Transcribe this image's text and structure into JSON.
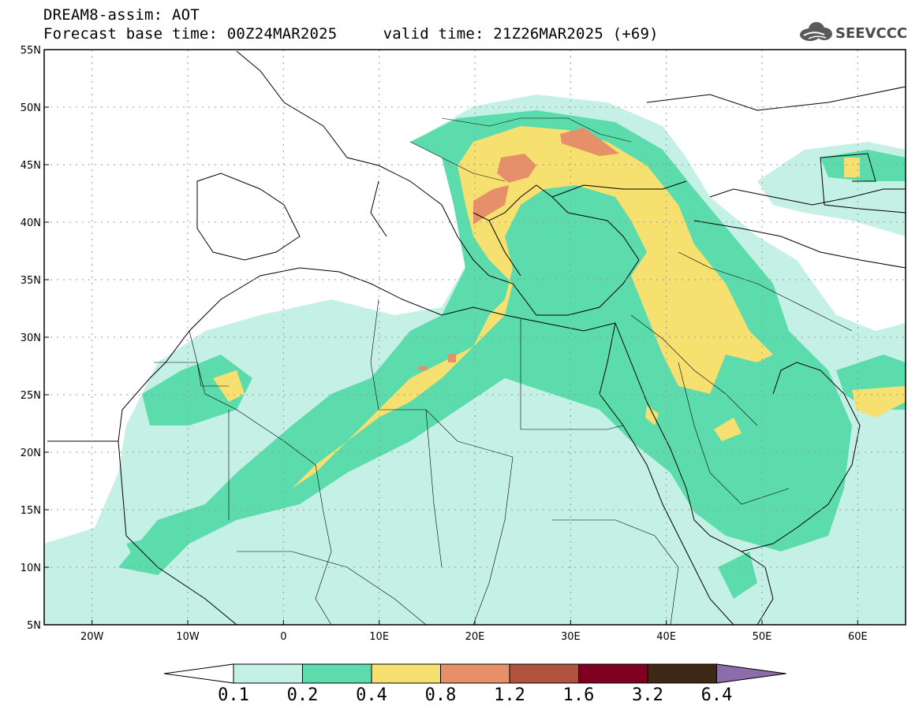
{
  "header": {
    "title": "DREAM8-assim: AOT",
    "subtitle": "Forecast base time: 00Z24MAR2025     valid time: 21Z26MAR2025 (+69)"
  },
  "logo": {
    "text": "SEEVCCC",
    "icon": "cloud-logo-icon"
  },
  "map": {
    "lon_range": [
      -25,
      65
    ],
    "lat_range": [
      5,
      55
    ],
    "x_ticks": [
      "20W",
      "10W",
      "0",
      "10E",
      "20E",
      "30E",
      "40E",
      "50E",
      "60E"
    ],
    "y_ticks": [
      "55N",
      "50N",
      "45N",
      "40N",
      "35N",
      "30N",
      "25N",
      "20N",
      "15N",
      "10N",
      "5N"
    ],
    "grid": true,
    "field": "AOT"
  },
  "colorbar": {
    "labels": [
      "0.1",
      "0.2",
      "0.4",
      "0.8",
      "1.2",
      "1.6",
      "3.2",
      "6.4"
    ],
    "colors": [
      "#c4f0e6",
      "#5cdcac",
      "#f5e070",
      "#e6906a",
      "#b0523e",
      "#800020",
      "#3c2814",
      "#8c6caa"
    ],
    "under_color": "#ffffff"
  }
}
